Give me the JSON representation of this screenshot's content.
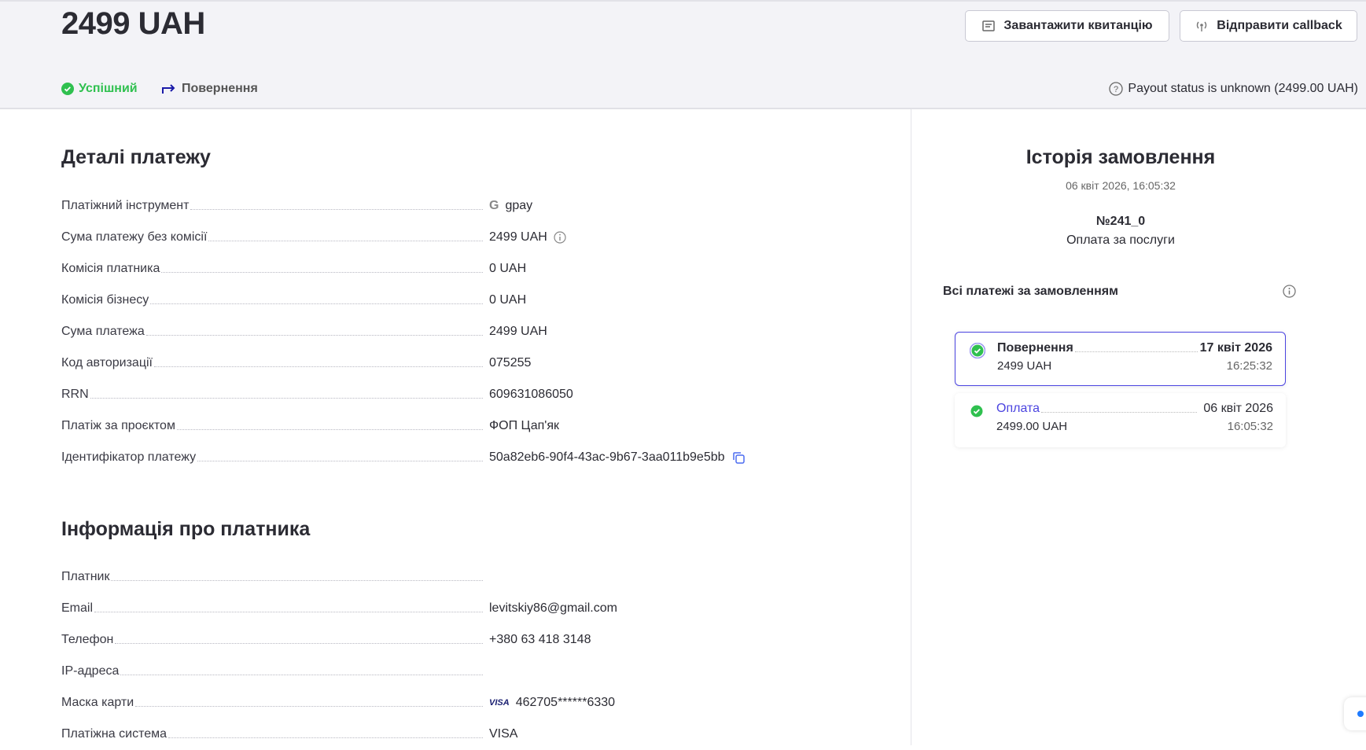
{
  "header": {
    "amount": "2499 UAH",
    "download_receipt": "Завантажити квитанцію",
    "send_callback": "Відправити callback",
    "status_success": "Успішний",
    "status_refund": "Повернення",
    "payout_status": "Payout status is unknown (2499.00 UAH)"
  },
  "colors": {
    "success": "#2fc04f",
    "accent": "#4b44e0",
    "refund_icon": "#1a1aa8"
  },
  "details": {
    "title": "Деталі платежу",
    "rows": [
      {
        "label": "Платіжний інструмент",
        "value": "gpay",
        "icon": "google-icon"
      },
      {
        "label": "Сума платежу без комісії",
        "value": "2499 UAH",
        "icon": "info-icon"
      },
      {
        "label": "Комісія платника",
        "value": "0 UAH"
      },
      {
        "label": "Комісія бізнесу",
        "value": "0 UAH"
      },
      {
        "label": "Сума платежа",
        "value": "2499 UAH"
      },
      {
        "label": "Код авторизації",
        "value": "075255"
      },
      {
        "label": "RRN",
        "value": "609631086050"
      },
      {
        "label": "Платіж за проєктом",
        "value": "ФОП Цап'як"
      },
      {
        "label": "Ідентифікатор платежу",
        "value": "50a82eb6-90f4-43ac-9b67-3aa011b9e5bb",
        "icon": "copy-icon"
      }
    ]
  },
  "payer": {
    "title": "Інформація про платника",
    "rows": [
      {
        "label": "Платник",
        "value": ""
      },
      {
        "label": "Email",
        "value": "levitskiy86@gmail.com"
      },
      {
        "label": "Телефон",
        "value": "+380 63 418 3148"
      },
      {
        "label": "IP-адреса",
        "value": ""
      },
      {
        "label": "Маска карти",
        "value": "462705******6330",
        "icon": "visa-icon",
        "brand": "VISA"
      },
      {
        "label": "Платіжна система",
        "value": "VISA"
      }
    ]
  },
  "history": {
    "title": "Історія замовлення",
    "date": "06 квіт 2026, 16:05:32",
    "order_number": "№241_0",
    "description": "Оплата за послуги",
    "all_payments": "Всі платежі за замовленням",
    "payments": [
      {
        "name": "Повернення",
        "amount": "2499 UAH",
        "date": "17 квіт 2026",
        "time": "16:25:32",
        "selected": true
      },
      {
        "name": "Оплата",
        "amount": "2499.00 UAH",
        "date": "06 квіт 2026",
        "time": "16:05:32",
        "selected": false
      }
    ]
  }
}
